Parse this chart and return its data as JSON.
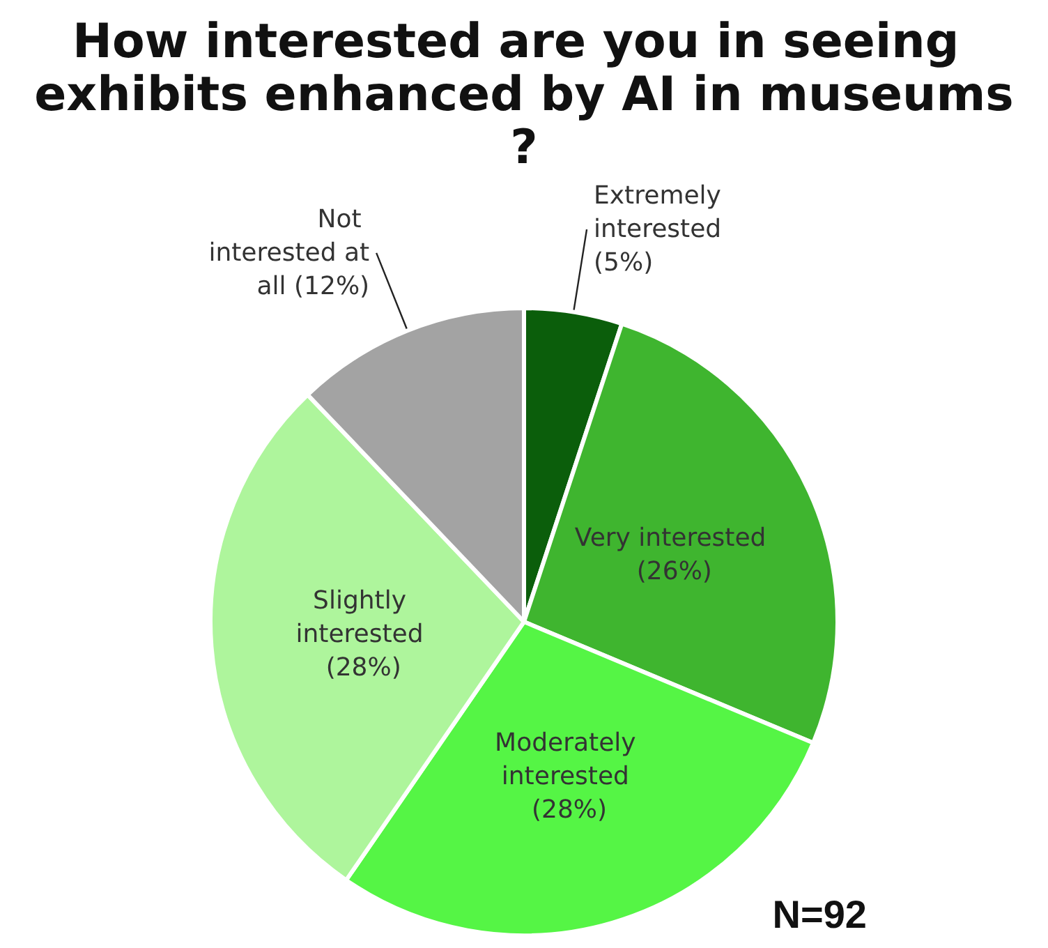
{
  "chart_data": {
    "type": "pie",
    "title": "How interested are you in seeing exhibits enhanced by AI in museums?",
    "categories": [
      "Extremely interested (5%)",
      "Very interested (26%)",
      "Moderately interested (28%)",
      "Slightly interested (28%)",
      "Not interested at all (12%)"
    ],
    "values": [
      5,
      26,
      28,
      28,
      12
    ],
    "colors": [
      "#0b5e0b",
      "#3fb52f",
      "#55f545",
      "#aef59c",
      "#a3a3a3"
    ],
    "annotations": [
      "N=92"
    ],
    "legend": false
  }
}
